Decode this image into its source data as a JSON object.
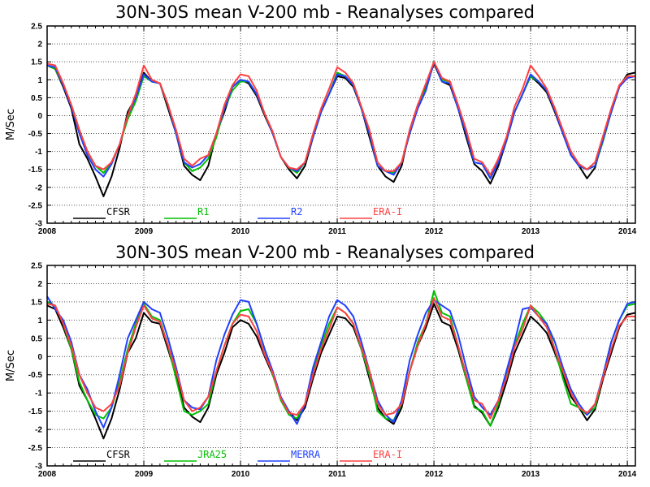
{
  "chart_data": [
    {
      "type": "line",
      "title": "30N-30S mean V-200 mb - Reanalyses compared",
      "ylabel": "M/Sec",
      "xlabel": "",
      "xlim": [
        2008,
        2014.083
      ],
      "ylim": [
        -3,
        2.5
      ],
      "x_ticks": [
        "2008",
        "2009",
        "2010",
        "2011",
        "2012",
        "2013",
        "2014"
      ],
      "y_ticks": [
        "2.5",
        "2",
        "1.5",
        "1",
        "0.5",
        "0",
        "-0.5",
        "-1",
        "-1.5",
        "-2",
        "-2.5",
        "-3"
      ],
      "grid": true,
      "legend_position": "bottom-left",
      "x_start_year": 2008,
      "series": [
        {
          "name": "CFSR",
          "color": "#000000",
          "values": [
            1.4,
            1.3,
            0.8,
            0.2,
            -0.8,
            -1.2,
            -1.7,
            -2.25,
            -1.7,
            -0.9,
            0.1,
            0.5,
            1.2,
            0.95,
            0.9,
            0.2,
            -0.5,
            -1.4,
            -1.65,
            -1.8,
            -1.4,
            -0.5,
            0.1,
            0.8,
            1.0,
            0.9,
            0.55,
            0.0,
            -0.5,
            -1.15,
            -1.5,
            -1.75,
            -1.4,
            -0.6,
            0.1,
            0.6,
            1.1,
            1.05,
            0.8,
            0.2,
            -0.6,
            -1.4,
            -1.7,
            -1.85,
            -1.4,
            -0.4,
            0.3,
            0.8,
            1.45,
            0.95,
            0.85,
            0.2,
            -0.6,
            -1.35,
            -1.55,
            -1.9,
            -1.4,
            -0.7,
            0.1,
            0.6,
            1.1,
            0.9,
            0.65,
            0.1,
            -0.5,
            -1.1,
            -1.4,
            -1.75,
            -1.45,
            -0.6,
            0.1,
            0.8,
            1.15,
            1.2
          ]
        },
        {
          "name": "R1",
          "color": "#00c000",
          "values": [
            1.4,
            1.3,
            0.85,
            0.3,
            -0.4,
            -1.0,
            -1.4,
            -1.6,
            -1.3,
            -0.8,
            -0.1,
            0.4,
            1.1,
            0.95,
            0.9,
            0.3,
            -0.5,
            -1.3,
            -1.55,
            -1.45,
            -1.2,
            -0.6,
            0.2,
            0.7,
            0.95,
            0.95,
            0.6,
            0.05,
            -0.5,
            -1.15,
            -1.45,
            -1.6,
            -1.3,
            -0.6,
            0.1,
            0.6,
            1.2,
            1.1,
            0.85,
            0.2,
            -0.5,
            -1.4,
            -1.55,
            -1.6,
            -1.3,
            -0.5,
            0.25,
            0.75,
            1.5,
            1.0,
            0.95,
            0.2,
            -0.5,
            -1.3,
            -1.35,
            -1.75,
            -1.25,
            -0.7,
            0.1,
            0.6,
            1.1,
            0.95,
            0.7,
            0.2,
            -0.5,
            -1.1,
            -1.4,
            -1.5,
            -1.4,
            -0.7,
            0.1,
            0.8,
            1.1,
            1.1
          ]
        },
        {
          "name": "R2",
          "color": "#2040ff",
          "values": [
            1.4,
            1.35,
            0.85,
            0.25,
            -0.5,
            -1.1,
            -1.5,
            -1.7,
            -1.35,
            -0.8,
            0.0,
            0.5,
            1.15,
            0.95,
            0.9,
            0.3,
            -0.5,
            -1.3,
            -1.45,
            -1.35,
            -1.1,
            -0.5,
            0.2,
            0.8,
            1.0,
            0.95,
            0.6,
            0.05,
            -0.5,
            -1.15,
            -1.45,
            -1.55,
            -1.3,
            -0.6,
            0.1,
            0.6,
            1.15,
            1.1,
            0.85,
            0.2,
            -0.5,
            -1.4,
            -1.55,
            -1.65,
            -1.3,
            -0.5,
            0.2,
            0.7,
            1.5,
            0.95,
            0.9,
            0.2,
            -0.5,
            -1.3,
            -1.35,
            -1.75,
            -1.3,
            -0.7,
            0.1,
            0.6,
            1.15,
            0.95,
            0.7,
            0.15,
            -0.5,
            -1.1,
            -1.4,
            -1.5,
            -1.4,
            -0.65,
            0.1,
            0.8,
            1.05,
            1.1
          ]
        },
        {
          "name": "ERA-I",
          "color": "#ff4040",
          "values": [
            1.45,
            1.4,
            0.9,
            0.3,
            -0.4,
            -1.0,
            -1.4,
            -1.5,
            -1.3,
            -0.8,
            0.0,
            0.6,
            1.4,
            1.0,
            0.9,
            0.3,
            -0.4,
            -1.2,
            -1.4,
            -1.2,
            -1.1,
            -0.5,
            0.3,
            0.85,
            1.15,
            1.1,
            0.7,
            0.05,
            -0.45,
            -1.15,
            -1.45,
            -1.5,
            -1.3,
            -0.5,
            0.2,
            0.75,
            1.35,
            1.2,
            0.9,
            0.25,
            -0.4,
            -1.3,
            -1.55,
            -1.55,
            -1.3,
            -0.4,
            0.3,
            0.9,
            1.5,
            1.05,
            0.95,
            0.3,
            -0.4,
            -1.2,
            -1.3,
            -1.65,
            -1.2,
            -0.6,
            0.25,
            0.75,
            1.4,
            1.1,
            0.75,
            0.2,
            -0.4,
            -1.0,
            -1.35,
            -1.5,
            -1.3,
            -0.55,
            0.2,
            0.85,
            1.1,
            1.1
          ]
        }
      ]
    },
    {
      "type": "line",
      "title": "30N-30S mean V-200 mb - Reanalyses compared",
      "ylabel": "M/Sec",
      "xlabel": "",
      "xlim": [
        2008,
        2014.083
      ],
      "ylim": [
        -3,
        2.5
      ],
      "x_ticks": [
        "2008",
        "2009",
        "2010",
        "2011",
        "2012",
        "2013",
        "2014"
      ],
      "y_ticks": [
        "2.5",
        "2",
        "1.5",
        "1",
        "0.5",
        "0",
        "-0.5",
        "-1",
        "-1.5",
        "-2",
        "-2.5",
        "-3"
      ],
      "grid": true,
      "legend_position": "bottom-left",
      "x_start_year": 2008,
      "series": [
        {
          "name": "CFSR",
          "color": "#000000",
          "values": [
            1.4,
            1.3,
            0.8,
            0.2,
            -0.8,
            -1.2,
            -1.7,
            -2.25,
            -1.7,
            -0.9,
            0.1,
            0.5,
            1.2,
            0.95,
            0.9,
            0.2,
            -0.5,
            -1.4,
            -1.65,
            -1.8,
            -1.4,
            -0.5,
            0.1,
            0.8,
            1.0,
            0.9,
            0.55,
            0.0,
            -0.5,
            -1.15,
            -1.5,
            -1.75,
            -1.4,
            -0.6,
            0.1,
            0.6,
            1.1,
            1.05,
            0.8,
            0.2,
            -0.6,
            -1.4,
            -1.7,
            -1.85,
            -1.4,
            -0.4,
            0.3,
            0.8,
            1.45,
            0.95,
            0.85,
            0.2,
            -0.6,
            -1.35,
            -1.55,
            -1.9,
            -1.4,
            -0.7,
            0.1,
            0.6,
            1.1,
            0.9,
            0.65,
            0.1,
            -0.5,
            -1.1,
            -1.4,
            -1.75,
            -1.45,
            -0.6,
            0.1,
            0.8,
            1.15,
            1.2
          ]
        },
        {
          "name": "JRA25",
          "color": "#00c000",
          "values": [
            1.5,
            1.4,
            0.9,
            0.2,
            -0.7,
            -1.2,
            -1.6,
            -1.7,
            -1.4,
            -0.7,
            0.2,
            0.9,
            1.45,
            1.1,
            1.0,
            0.3,
            -0.6,
            -1.5,
            -1.6,
            -1.5,
            -1.3,
            -0.4,
            0.3,
            0.9,
            1.25,
            1.3,
            0.9,
            0.2,
            -0.5,
            -1.2,
            -1.6,
            -1.7,
            -1.3,
            -0.4,
            0.3,
            0.9,
            1.35,
            1.2,
            0.9,
            0.2,
            -0.5,
            -1.5,
            -1.7,
            -1.75,
            -1.3,
            -0.4,
            0.4,
            0.9,
            1.8,
            1.2,
            1.1,
            0.3,
            -0.6,
            -1.4,
            -1.5,
            -1.9,
            -1.3,
            -0.5,
            0.3,
            0.9,
            1.4,
            1.2,
            0.9,
            0.2,
            -0.6,
            -1.3,
            -1.4,
            -1.6,
            -1.4,
            -0.5,
            0.4,
            1.0,
            1.4,
            1.45
          ]
        },
        {
          "name": "MERRA",
          "color": "#2040ff",
          "values": [
            1.65,
            1.3,
            1.0,
            0.4,
            -0.5,
            -0.9,
            -1.5,
            -1.95,
            -1.4,
            -0.5,
            0.5,
            1.0,
            1.5,
            1.3,
            1.2,
            0.5,
            -0.3,
            -1.2,
            -1.4,
            -1.45,
            -1.1,
            -0.1,
            0.6,
            1.15,
            1.55,
            1.5,
            0.9,
            0.2,
            -0.4,
            -1.1,
            -1.5,
            -1.85,
            -1.3,
            -0.3,
            0.4,
            1.1,
            1.55,
            1.4,
            1.1,
            0.4,
            -0.4,
            -1.2,
            -1.6,
            -1.8,
            -1.2,
            -0.1,
            0.6,
            1.2,
            1.55,
            1.4,
            1.25,
            0.6,
            -0.3,
            -1.1,
            -1.4,
            -1.6,
            -1.2,
            -0.4,
            0.4,
            1.3,
            1.35,
            1.1,
            0.9,
            0.4,
            -0.3,
            -0.9,
            -1.3,
            -1.6,
            -1.3,
            -0.5,
            0.4,
            1.0,
            1.45,
            1.5
          ]
        },
        {
          "name": "ERA-I",
          "color": "#ff4040",
          "values": [
            1.45,
            1.4,
            0.9,
            0.3,
            -0.5,
            -1.0,
            -1.4,
            -1.5,
            -1.3,
            -0.8,
            0.1,
            0.8,
            1.4,
            1.05,
            0.95,
            0.3,
            -0.4,
            -1.2,
            -1.5,
            -1.4,
            -1.1,
            -0.4,
            0.3,
            0.9,
            1.15,
            1.1,
            0.7,
            0.05,
            -0.45,
            -1.15,
            -1.55,
            -1.6,
            -1.3,
            -0.5,
            0.2,
            0.75,
            1.35,
            1.2,
            0.9,
            0.25,
            -0.4,
            -1.3,
            -1.6,
            -1.55,
            -1.3,
            -0.4,
            0.3,
            0.9,
            1.6,
            1.1,
            1.0,
            0.3,
            -0.5,
            -1.2,
            -1.3,
            -1.7,
            -1.2,
            -0.6,
            0.25,
            0.75,
            1.4,
            1.1,
            0.8,
            0.2,
            -0.4,
            -1.0,
            -1.4,
            -1.55,
            -1.3,
            -0.55,
            0.2,
            0.85,
            1.1,
            1.1
          ]
        }
      ]
    }
  ]
}
